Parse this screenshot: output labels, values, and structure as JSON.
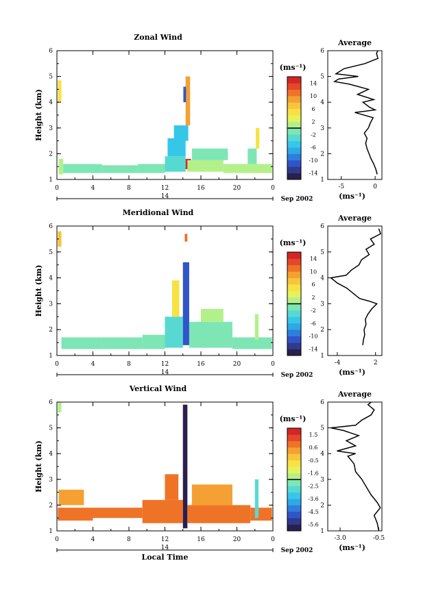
{
  "chart_data": [
    {
      "type": "heatmap",
      "title": "Zonal Wind",
      "ylabel": "Height (km)",
      "xlabel": "",
      "x_ticks": [
        "0",
        "4",
        "8",
        "12",
        "16",
        "20",
        "0"
      ],
      "y_ticks": [
        "1",
        "2",
        "3",
        "4",
        "5",
        "6"
      ],
      "date_label": "14",
      "month_label": "Sep 2002",
      "xlim": [
        0,
        24
      ],
      "ylim": [
        1,
        6
      ],
      "colorbar": {
        "unit": "(ms⁻¹)",
        "ticks": [
          "14",
          "10",
          "6",
          "2",
          "-2",
          "-6",
          "-10",
          "-14"
        ],
        "range": [
          -16,
          16
        ]
      },
      "cells": [
        {
          "t0": 0.1,
          "t1": 0.5,
          "h0": 4.0,
          "h1": 4.85,
          "v": 4
        },
        {
          "t0": 0.2,
          "t1": 0.7,
          "h0": 1.2,
          "h1": 1.8,
          "v": 0
        },
        {
          "t0": 0.7,
          "t1": 5.0,
          "h0": 1.25,
          "h1": 1.6,
          "v": -2
        },
        {
          "t0": 5.0,
          "t1": 9.0,
          "h0": 1.25,
          "h1": 1.55,
          "v": -1
        },
        {
          "t0": 9.0,
          "t1": 12.0,
          "h0": 1.25,
          "h1": 1.6,
          "v": -2
        },
        {
          "t0": 12.0,
          "t1": 14.3,
          "h0": 1.3,
          "h1": 1.9,
          "v": -4
        },
        {
          "t0": 12.3,
          "t1": 14.3,
          "h0": 1.9,
          "h1": 2.6,
          "v": -5
        },
        {
          "t0": 13.0,
          "t1": 14.6,
          "h0": 2.5,
          "h1": 3.1,
          "v": -6
        },
        {
          "t0": 14.3,
          "t1": 14.8,
          "h0": 3.1,
          "h1": 5.0,
          "v": 8
        },
        {
          "t0": 14.05,
          "t1": 14.35,
          "h0": 4.0,
          "h1": 4.6,
          "v": -12
        },
        {
          "t0": 14.3,
          "t1": 14.9,
          "h0": 1.4,
          "h1": 1.8,
          "v": 14
        },
        {
          "t0": 14.5,
          "t1": 18.5,
          "h0": 1.3,
          "h1": 1.75,
          "v": 1
        },
        {
          "t0": 15.0,
          "t1": 19.0,
          "h0": 1.75,
          "h1": 2.2,
          "v": -2
        },
        {
          "t0": 18.5,
          "t1": 23.9,
          "h0": 1.25,
          "h1": 1.6,
          "v": 0
        },
        {
          "t0": 21.2,
          "t1": 22.2,
          "h0": 1.6,
          "h1": 2.2,
          "v": -1
        },
        {
          "t0": 22.1,
          "t1": 22.5,
          "h0": 2.2,
          "h1": 3.0,
          "v": 4
        },
        {
          "t0": 14.05,
          "t1": 14.2,
          "h0": 4.5,
          "h1": 4.55,
          "v": -10
        }
      ],
      "avg_panel": {
        "title": "Average",
        "xlabel": "(ms⁻¹)",
        "x_ticks": [
          "-5",
          "0"
        ],
        "xlim": [
          -7,
          1
        ],
        "profile": [
          [
            1.2,
            0.3
          ],
          [
            1.4,
            0.1
          ],
          [
            1.6,
            -0.2
          ],
          [
            1.8,
            -0.6
          ],
          [
            2.0,
            -0.9
          ],
          [
            2.2,
            -1.2
          ],
          [
            2.4,
            -1.4
          ],
          [
            2.6,
            -1.2
          ],
          [
            2.8,
            -1.6
          ],
          [
            3.0,
            -1.0
          ],
          [
            3.2,
            -0.7
          ],
          [
            3.4,
            -0.3
          ],
          [
            3.6,
            -3.0
          ],
          [
            3.7,
            0.0
          ],
          [
            3.8,
            -0.8
          ],
          [
            4.0,
            -1.8
          ],
          [
            4.1,
            -0.2
          ],
          [
            4.3,
            -2.6
          ],
          [
            4.5,
            -1.0
          ],
          [
            4.7,
            -3.8
          ],
          [
            4.8,
            -6.0
          ],
          [
            4.9,
            -5.4
          ],
          [
            5.0,
            -2.5
          ],
          [
            5.1,
            -5.8
          ],
          [
            5.3,
            -4.6
          ],
          [
            5.5,
            -1.5
          ],
          [
            5.7,
            0.4
          ],
          [
            5.9,
            0.2
          ],
          [
            6.0,
            0.4
          ]
        ]
      }
    },
    {
      "type": "heatmap",
      "title": "Meridional Wind",
      "ylabel": "Height (km)",
      "xlabel": "",
      "x_ticks": [
        "0",
        "4",
        "8",
        "12",
        "16",
        "20",
        "0"
      ],
      "y_ticks": [
        "1",
        "2",
        "3",
        "4",
        "5",
        "6"
      ],
      "date_label": "14",
      "month_label": "Sep 2002",
      "xlim": [
        0,
        24
      ],
      "ylim": [
        1,
        6
      ],
      "colorbar": {
        "unit": "(ms⁻¹)",
        "ticks": [
          "14",
          "10",
          "6",
          "2",
          "-2",
          "-6",
          "-10",
          "-14"
        ],
        "range": [
          -16,
          16
        ]
      },
      "cells": [
        {
          "t0": 0.1,
          "t1": 0.5,
          "h0": 5.2,
          "h1": 5.8,
          "v": 6
        },
        {
          "t0": 0.5,
          "t1": 5.0,
          "h0": 1.25,
          "h1": 1.7,
          "v": -1
        },
        {
          "t0": 5.0,
          "t1": 9.5,
          "h0": 1.25,
          "h1": 1.7,
          "v": -2
        },
        {
          "t0": 9.5,
          "t1": 12.0,
          "h0": 1.25,
          "h1": 1.8,
          "v": -1
        },
        {
          "t0": 12.0,
          "t1": 14.0,
          "h0": 1.3,
          "h1": 2.5,
          "v": -4
        },
        {
          "t0": 12.8,
          "t1": 13.6,
          "h0": 2.5,
          "h1": 3.9,
          "v": 4
        },
        {
          "t0": 14.0,
          "t1": 14.7,
          "h0": 1.4,
          "h1": 4.6,
          "v": -12
        },
        {
          "t0": 14.7,
          "t1": 19.5,
          "h0": 1.3,
          "h1": 2.3,
          "v": -1
        },
        {
          "t0": 16.0,
          "t1": 18.5,
          "h0": 2.3,
          "h1": 2.8,
          "v": 1
        },
        {
          "t0": 19.5,
          "t1": 23.9,
          "h0": 1.25,
          "h1": 1.7,
          "v": -2
        },
        {
          "t0": 22.0,
          "t1": 22.4,
          "h0": 1.6,
          "h1": 2.6,
          "v": 1
        },
        {
          "t0": 14.2,
          "t1": 14.5,
          "h0": 5.4,
          "h1": 5.7,
          "v": 10
        }
      ],
      "avg_panel": {
        "title": "Average",
        "xlabel": "(ms⁻¹)",
        "x_ticks": [
          "-4",
          "2"
        ],
        "xlim": [
          -5.5,
          3
        ],
        "profile": [
          [
            1.4,
            0.0
          ],
          [
            1.6,
            0.1
          ],
          [
            1.8,
            0.3
          ],
          [
            2.0,
            0.2
          ],
          [
            2.2,
            0.5
          ],
          [
            2.4,
            0.4
          ],
          [
            2.6,
            0.8
          ],
          [
            2.8,
            1.4
          ],
          [
            3.0,
            2.2
          ],
          [
            3.1,
            1.0
          ],
          [
            3.2,
            -0.5
          ],
          [
            3.4,
            -1.5
          ],
          [
            3.6,
            -2.5
          ],
          [
            3.8,
            -4.0
          ],
          [
            4.0,
            -5.0
          ],
          [
            4.1,
            -2.6
          ],
          [
            4.3,
            -1.8
          ],
          [
            4.5,
            -0.6
          ],
          [
            4.7,
            -0.2
          ],
          [
            4.9,
            1.0
          ],
          [
            5.1,
            0.5
          ],
          [
            5.3,
            1.8
          ],
          [
            5.5,
            1.2
          ],
          [
            5.7,
            2.8
          ],
          [
            5.9,
            2.5
          ]
        ]
      }
    },
    {
      "type": "heatmap",
      "title": "Vertical Wind",
      "ylabel": "Height (km)",
      "xlabel": "Local Time",
      "x_ticks": [
        "0",
        "4",
        "8",
        "12",
        "16",
        "20",
        "0"
      ],
      "y_ticks": [
        "1",
        "2",
        "3",
        "4",
        "5",
        "6"
      ],
      "date_label": "14",
      "month_label": "Sep 2002",
      "xlim": [
        0,
        24
      ],
      "ylim": [
        1,
        6
      ],
      "colorbar": {
        "unit": "(ms⁻¹)",
        "ticks": [
          "1.5",
          "0.6",
          "-0.5",
          "-1.6",
          "-2.5",
          "-3.6",
          "-4.5",
          "-5.6"
        ],
        "range": [
          -6,
          2
        ]
      },
      "cells": [
        {
          "t0": 0.1,
          "t1": 0.5,
          "h0": 5.6,
          "h1": 6.0,
          "v": -1.6
        },
        {
          "t0": 0.1,
          "t1": 4.0,
          "h0": 1.4,
          "h1": 1.9,
          "v": 0.6
        },
        {
          "t0": 4.0,
          "t1": 9.5,
          "h0": 1.5,
          "h1": 1.9,
          "v": 0.6
        },
        {
          "t0": 9.5,
          "t1": 14.0,
          "h0": 1.3,
          "h1": 2.2,
          "v": 0.9
        },
        {
          "t0": 12.0,
          "t1": 13.5,
          "h0": 2.2,
          "h1": 3.2,
          "v": 0.6
        },
        {
          "t0": 14.0,
          "t1": 14.5,
          "h0": 1.1,
          "h1": 5.9,
          "v": -5.6
        },
        {
          "t0": 14.5,
          "t1": 21.5,
          "h0": 1.3,
          "h1": 2.0,
          "v": 0.9
        },
        {
          "t0": 15.0,
          "t1": 19.5,
          "h0": 2.0,
          "h1": 2.8,
          "v": 0.4
        },
        {
          "t0": 21.5,
          "t1": 23.9,
          "h0": 1.4,
          "h1": 1.9,
          "v": 0.6
        },
        {
          "t0": 22.0,
          "t1": 22.4,
          "h0": 1.5,
          "h1": 3.0,
          "v": -3.0
        },
        {
          "t0": 0.2,
          "t1": 3.0,
          "h0": 2.0,
          "h1": 2.6,
          "v": 0.2
        }
      ],
      "avg_panel": {
        "title": "Average",
        "xlabel": "(ms⁻¹)",
        "x_ticks": [
          "-3.0",
          "-0.5"
        ],
        "xlim": [
          -3.8,
          -0.3
        ],
        "profile": [
          [
            1.0,
            -0.5
          ],
          [
            1.3,
            -0.6
          ],
          [
            1.6,
            -0.8
          ],
          [
            1.9,
            -0.4
          ],
          [
            2.1,
            -0.6
          ],
          [
            2.4,
            -1.0
          ],
          [
            2.7,
            -1.3
          ],
          [
            3.0,
            -1.6
          ],
          [
            3.3,
            -2.0
          ],
          [
            3.6,
            -2.1
          ],
          [
            3.9,
            -2.5
          ],
          [
            4.0,
            -2.0
          ],
          [
            4.1,
            -3.2
          ],
          [
            4.3,
            -2.0
          ],
          [
            4.5,
            -2.6
          ],
          [
            4.7,
            -1.8
          ],
          [
            4.9,
            -2.8
          ],
          [
            5.0,
            -3.6
          ],
          [
            5.1,
            -2.0
          ],
          [
            5.3,
            -1.6
          ],
          [
            5.5,
            -1.0
          ],
          [
            5.7,
            -0.8
          ],
          [
            5.9,
            -1.2
          ],
          [
            6.0,
            -1.0
          ]
        ]
      }
    }
  ]
}
